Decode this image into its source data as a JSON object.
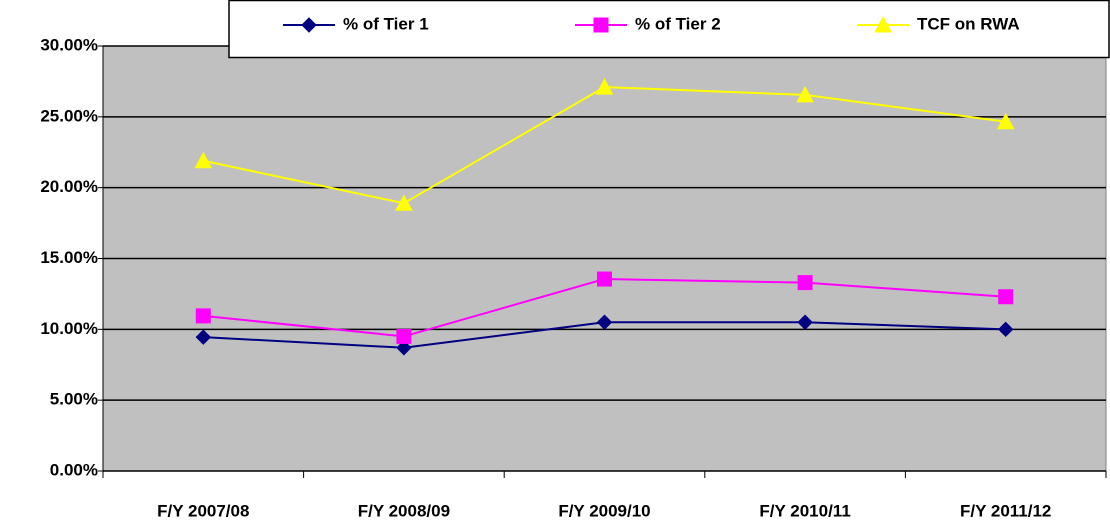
{
  "chart_data": {
    "type": "line",
    "categories": [
      "F/Y 2007/08",
      "F/Y 2008/09",
      "F/Y 2009/10",
      "F/Y 2010/11",
      "F/Y 2011/12"
    ],
    "series": [
      {
        "name": "% of Tier 1",
        "color": "#000080",
        "marker": "diamond",
        "values": [
          9.45,
          8.7,
          10.5,
          10.5,
          10.0
        ]
      },
      {
        "name": "% of Tier 2",
        "color": "#FF00FF",
        "marker": "square",
        "values": [
          10.95,
          9.5,
          13.55,
          13.3,
          12.3
        ]
      },
      {
        "name": "TCF on RWA",
        "color": "#FFFF00",
        "marker": "triangle",
        "values": [
          21.9,
          18.9,
          27.1,
          26.55,
          24.65
        ]
      }
    ],
    "ylim": [
      0,
      30
    ],
    "yticks": [
      {
        "value": 0,
        "label": "0.00%"
      },
      {
        "value": 5,
        "label": "5.00%"
      },
      {
        "value": 10,
        "label": "10.00%"
      },
      {
        "value": 15,
        "label": "15.00%"
      },
      {
        "value": 20,
        "label": "20.00%"
      },
      {
        "value": 25,
        "label": "25.00%"
      },
      {
        "value": 30,
        "label": "30.00%"
      }
    ],
    "grid": true,
    "legend": "top"
  }
}
